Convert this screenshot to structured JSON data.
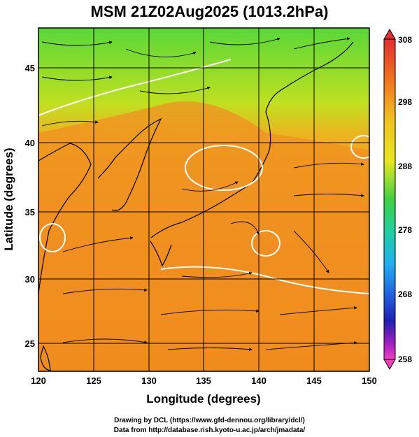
{
  "title": "MSM 21Z02Aug2025 (1013.2hPa)",
  "xlabel": "Longitude (degrees)",
  "ylabel": "Latitude  (degrees)",
  "x_ticks": [
    "120",
    "125",
    "130",
    "135",
    "140",
    "145",
    "150"
  ],
  "y_ticks": [
    "25",
    "30",
    "35",
    "40",
    "45"
  ],
  "colorbar_ticks": [
    "308",
    "298",
    "288",
    "278",
    "268",
    "258"
  ],
  "colorbar_range": [
    258,
    308
  ],
  "map_extent": {
    "lon": [
      120,
      150
    ],
    "lat": [
      22.5,
      47.5
    ]
  },
  "credits": {
    "drawing": "Drawing by DCL (https://www.gfd-dennou.org/library/dcl/)",
    "data": "Data from http://database.rish.kyoto-u.ac.jp/arch/jmadata/"
  },
  "colors": {
    "land_outline": "#000000",
    "contour": "#ffffff",
    "warm": "#f09020",
    "cool": "#70d840"
  }
}
